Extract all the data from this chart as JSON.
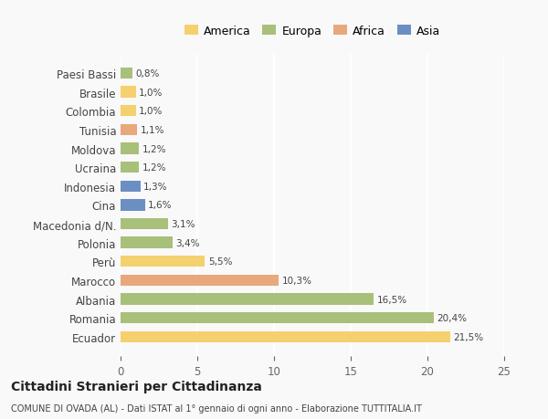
{
  "countries": [
    "Ecuador",
    "Romania",
    "Albania",
    "Marocco",
    "Perù",
    "Polonia",
    "Macedonia d/N.",
    "Cina",
    "Indonesia",
    "Ucraina",
    "Moldova",
    "Tunisia",
    "Colombia",
    "Brasile",
    "Paesi Bassi"
  ],
  "values": [
    21.5,
    20.4,
    16.5,
    10.3,
    5.5,
    3.4,
    3.1,
    1.6,
    1.3,
    1.2,
    1.2,
    1.1,
    1.0,
    1.0,
    0.8
  ],
  "labels": [
    "21,5%",
    "20,4%",
    "16,5%",
    "10,3%",
    "5,5%",
    "3,4%",
    "3,1%",
    "1,6%",
    "1,3%",
    "1,2%",
    "1,2%",
    "1,1%",
    "1,0%",
    "1,0%",
    "0,8%"
  ],
  "colors": [
    "#f5d06e",
    "#a8c07a",
    "#a8c07a",
    "#e8a87c",
    "#f5d06e",
    "#a8c07a",
    "#a8c07a",
    "#6b8fc2",
    "#6b8fc2",
    "#a8c07a",
    "#a8c07a",
    "#e8a87c",
    "#f5d06e",
    "#f5d06e",
    "#a8c07a"
  ],
  "legend_names": [
    "America",
    "Europa",
    "Africa",
    "Asia"
  ],
  "legend_colors": [
    "#f5d06e",
    "#a8c07a",
    "#e8a87c",
    "#6b8fc2"
  ],
  "xlim": [
    0,
    25
  ],
  "xticks": [
    0,
    5,
    10,
    15,
    20,
    25
  ],
  "title": "Cittadini Stranieri per Cittadinanza",
  "subtitle": "COMUNE DI OVADA (AL) - Dati ISTAT al 1° gennaio di ogni anno - Elaborazione TUTTITALIA.IT",
  "background_color": "#f9f9f9",
  "grid_color": "#ffffff"
}
